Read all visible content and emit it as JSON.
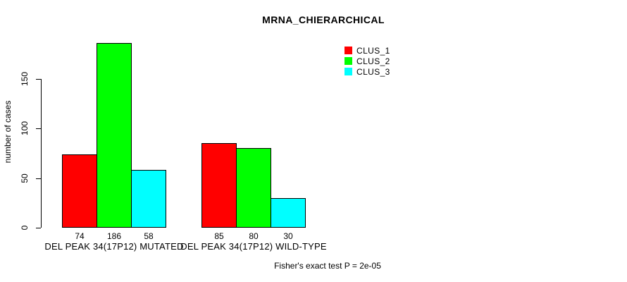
{
  "chart_data": {
    "type": "bar",
    "title": "MRNA_CHIERARCHICAL",
    "xlabel": "",
    "ylabel": "number of cases",
    "ylim": [
      0,
      150
    ],
    "yticks": [
      0,
      50,
      100,
      150
    ],
    "grid": false,
    "legend_position": "top-right",
    "categories": [
      "DEL PEAK 34(17P12) MUTATED",
      "DEL PEAK 34(17P12) WILD-TYPE"
    ],
    "series": [
      {
        "name": "CLUS_1",
        "color": "#ff0000",
        "values": [
          74,
          85
        ]
      },
      {
        "name": "CLUS_2",
        "color": "#00ff00",
        "values": [
          186,
          80
        ]
      },
      {
        "name": "CLUS_3",
        "color": "#00ffff",
        "values": [
          58,
          30
        ]
      }
    ],
    "bar_value_labels": [
      [
        74,
        186,
        58
      ],
      [
        85,
        80,
        30
      ]
    ],
    "annotation": "Fisher's exact test P = 2e-05",
    "colors": {
      "bar_border": "#000000",
      "axis": "#000000",
      "background": "#ffffff"
    }
  }
}
